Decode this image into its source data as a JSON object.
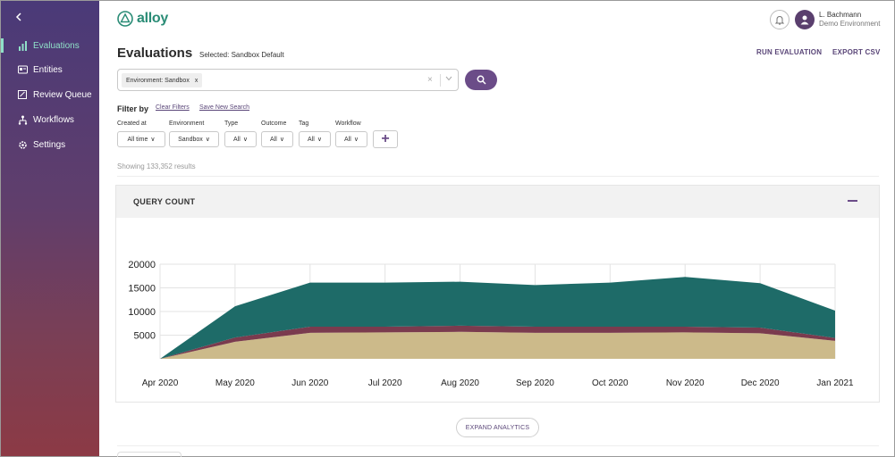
{
  "sidebar": {
    "back_icon": "chevron-left-icon",
    "items": [
      {
        "label": "Evaluations",
        "icon": "bar-chart-icon",
        "active": true
      },
      {
        "label": "Entities",
        "icon": "entities-icon",
        "active": false
      },
      {
        "label": "Review Queue",
        "icon": "review-queue-icon",
        "active": false
      },
      {
        "label": "Workflows",
        "icon": "workflows-icon",
        "active": false
      },
      {
        "label": "Settings",
        "icon": "gear-icon",
        "active": false
      }
    ]
  },
  "header": {
    "logo_text": "alloy",
    "user_name": "L. Bachmann",
    "user_env": "Demo Environment"
  },
  "page": {
    "title": "Evaluations",
    "selected": "Selected: Sandbox Default",
    "run_evaluation": "RUN EVALUATION",
    "export_csv": "EXPORT CSV"
  },
  "search": {
    "chip_label": "Environment: Sandbox",
    "chip_remove": "x",
    "clear": "×"
  },
  "filters": {
    "title": "Filter by",
    "clear_filters": "Clear Filters",
    "save_search": "Save New Search",
    "items": [
      {
        "label": "Created at",
        "value": "All time"
      },
      {
        "label": "Environment",
        "value": "Sandbox"
      },
      {
        "label": "Type",
        "value": "All"
      },
      {
        "label": "Outcome",
        "value": "All"
      },
      {
        "label": "Tag",
        "value": "All"
      },
      {
        "label": "Workflow",
        "value": "All"
      }
    ],
    "add": "+"
  },
  "results": {
    "showing": "Showing 133,352 results"
  },
  "card": {
    "title": "QUERY COUNT"
  },
  "chart_data": {
    "type": "area",
    "stacked": true,
    "title": "",
    "xlabel": "",
    "ylabel": "",
    "categories": [
      "Apr 2020",
      "May 2020",
      "Jun 2020",
      "Jul 2020",
      "Aug 2020",
      "Sep 2020",
      "Oct 2020",
      "Nov 2020",
      "Dec 2020",
      "Jan 2021"
    ],
    "yticks": [
      "20000",
      "15000",
      "10000",
      "5000"
    ],
    "ylim": [
      0,
      20000
    ],
    "grid": true,
    "series": [
      {
        "color": "#ccba8a",
        "values": [
          0,
          3600,
          5500,
          5600,
          5700,
          5500,
          5500,
          5600,
          5400,
          3800
        ]
      },
      {
        "color": "#7a3b4e",
        "values": [
          0,
          900,
          1300,
          1200,
          1300,
          1300,
          1300,
          1200,
          1200,
          600
        ]
      },
      {
        "color": "#1e6b68",
        "values": [
          0,
          6600,
          9300,
          9300,
          9300,
          8800,
          9300,
          10500,
          9400,
          5800
        ]
      }
    ]
  },
  "expand_analytics": "EXPAND ANALYTICS"
}
